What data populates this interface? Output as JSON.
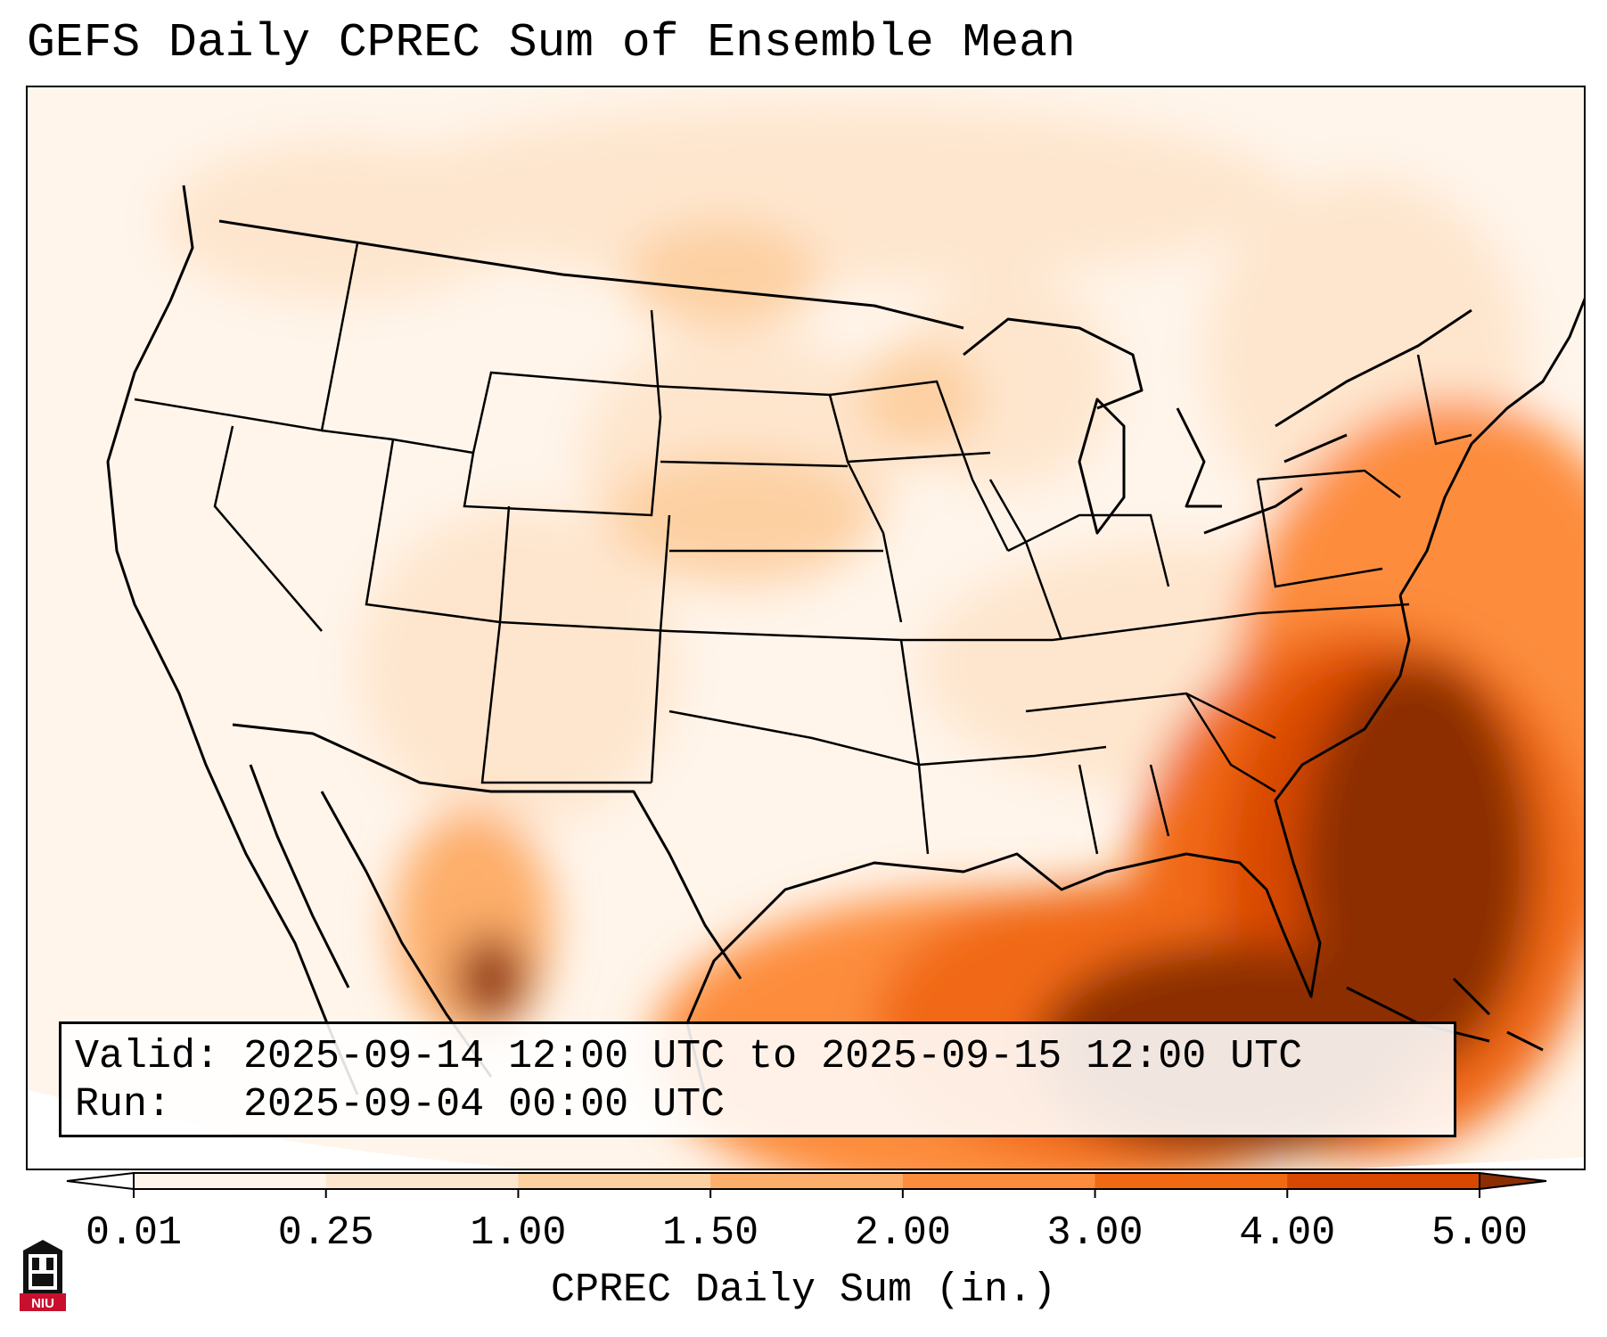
{
  "title": "GEFS Daily CPREC Sum of Ensemble Mean",
  "info": {
    "valid_label": "Valid:",
    "valid_value": "2025-09-14 12:00 UTC to 2025-09-15 12:00 UTC",
    "run_label": "Run:",
    "run_value": "2025-09-04 00:00 UTC"
  },
  "colorbar": {
    "title": "CPREC Daily Sum (in.)",
    "ticks": [
      "0.01",
      "0.25",
      "1.00",
      "1.50",
      "2.00",
      "3.00",
      "4.00",
      "5.00"
    ],
    "colors": [
      "#fff5eb",
      "#fee6ce",
      "#fdd0a2",
      "#fdae6b",
      "#fd8d3c",
      "#f16913",
      "#d94801",
      "#8c2d04"
    ],
    "under_color": "#ffffff",
    "over_color": "#8c2d04"
  },
  "logo": {
    "text": "NIU",
    "color": "#c8102e"
  }
}
